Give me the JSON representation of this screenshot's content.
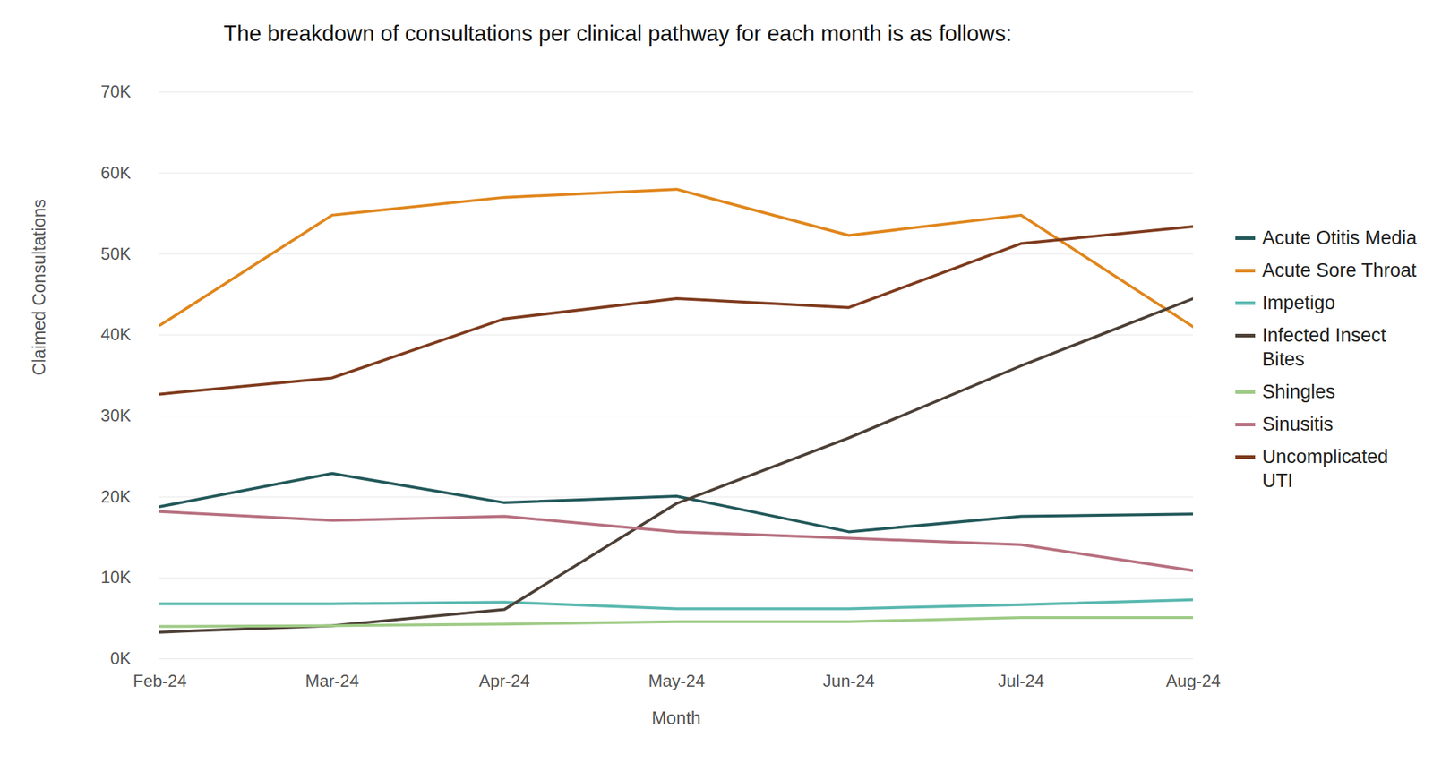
{
  "chart_data": {
    "type": "line",
    "title": "The breakdown of consultations per clinical pathway for each month is as follows:",
    "x_label": "Month",
    "y_label": "Claimed Consultations",
    "categories": [
      "Feb-24",
      "Mar-24",
      "Apr-24",
      "May-24",
      "Jun-24",
      "Jul-24",
      "Aug-24"
    ],
    "series": [
      {
        "name": "Acute Otitis Media",
        "color": "#23595b",
        "values": [
          18800,
          22900,
          19300,
          20100,
          15700,
          17600,
          17900
        ]
      },
      {
        "name": "Acute Sore Throat",
        "color": "#e0861c",
        "values": [
          41200,
          54800,
          57000,
          58000,
          52300,
          54800,
          41000
        ]
      },
      {
        "name": "Impetigo",
        "color": "#5ab8b0",
        "values": [
          6800,
          6800,
          7000,
          6200,
          6200,
          6700,
          7300
        ]
      },
      {
        "name": "Infected Insect Bites",
        "color": "#4d4036",
        "values": [
          3300,
          4100,
          6100,
          19200,
          27300,
          36200,
          44500
        ]
      },
      {
        "name": "Shingles",
        "color": "#9fcb86",
        "values": [
          4000,
          4100,
          4300,
          4600,
          4600,
          5100,
          5100
        ]
      },
      {
        "name": "Sinusitis",
        "color": "#b7707f",
        "values": [
          18200,
          17100,
          17600,
          15700,
          14900,
          14100,
          10900
        ]
      },
      {
        "name": "Uncomplicated UTI",
        "color": "#7f3b1d",
        "values": [
          32700,
          34700,
          42000,
          44500,
          43400,
          51300,
          53400
        ]
      }
    ],
    "ylim": [
      0,
      70000
    ],
    "yticks": [
      {
        "value": 0,
        "label": "0K"
      },
      {
        "value": 10000,
        "label": "10K"
      },
      {
        "value": 20000,
        "label": "20K"
      },
      {
        "value": 30000,
        "label": "30K"
      },
      {
        "value": 40000,
        "label": "40K"
      },
      {
        "value": 50000,
        "label": "50K"
      },
      {
        "value": 60000,
        "label": "60K"
      },
      {
        "value": 70000,
        "label": "70K"
      }
    ],
    "grid": true,
    "legend": "right"
  }
}
